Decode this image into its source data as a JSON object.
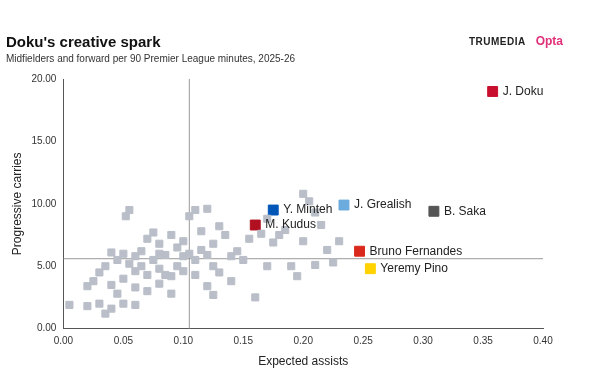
{
  "chart_data": {
    "type": "scatter",
    "title": "Doku's creative spark",
    "subtitle": "Midfielders and forward per 90 Premier League minutes, 2025-26",
    "logos": [
      "TRUMEDIA",
      "Opta"
    ],
    "x_label": "Expected assists",
    "y_label": "Progressive carries",
    "xlim": [
      0,
      0.4
    ],
    "ylim": [
      0,
      20
    ],
    "xticks": [
      {
        "value": 0,
        "label": "0.00"
      },
      {
        "value": 0.05,
        "label": "0.05"
      },
      {
        "value": 0.1,
        "label": "0.10"
      },
      {
        "value": 0.15,
        "label": "0.15"
      },
      {
        "value": 0.2,
        "label": "0.20"
      },
      {
        "value": 0.25,
        "label": "0.25"
      },
      {
        "value": 0.3,
        "label": "0.30"
      },
      {
        "value": 0.35,
        "label": "0.35"
      },
      {
        "value": 0.4,
        "label": "0.40"
      }
    ],
    "yticks": [
      {
        "value": 0,
        "label": "0.00"
      },
      {
        "value": 5,
        "label": "5.00"
      },
      {
        "value": 10,
        "label": "10.00"
      },
      {
        "value": 15,
        "label": "15.00"
      },
      {
        "value": 20,
        "label": "20.00"
      }
    ],
    "grid": false,
    "reference_lines": {
      "x": 0.105,
      "y": 5.6
    },
    "series": [
      {
        "color": "#b9bec8",
        "marker": "square",
        "points": [
          {
            "x": 0.005,
            "y": 1.9
          },
          {
            "x": 0.02,
            "y": 1.8
          },
          {
            "x": 0.02,
            "y": 3.4
          },
          {
            "x": 0.025,
            "y": 3.8
          },
          {
            "x": 0.03,
            "y": 2.0
          },
          {
            "x": 0.03,
            "y": 4.5
          },
          {
            "x": 0.035,
            "y": 1.2
          },
          {
            "x": 0.035,
            "y": 5.0
          },
          {
            "x": 0.04,
            "y": 1.6
          },
          {
            "x": 0.04,
            "y": 3.5
          },
          {
            "x": 0.045,
            "y": 5.5
          },
          {
            "x": 0.045,
            "y": 2.8
          },
          {
            "x": 0.05,
            "y": 2.0
          },
          {
            "x": 0.05,
            "y": 4.0
          },
          {
            "x": 0.05,
            "y": 6.0
          },
          {
            "x": 0.052,
            "y": 9.0
          },
          {
            "x": 0.055,
            "y": 9.5
          },
          {
            "x": 0.055,
            "y": 5.2
          },
          {
            "x": 0.06,
            "y": 3.3
          },
          {
            "x": 0.06,
            "y": 4.6
          },
          {
            "x": 0.06,
            "y": 1.9
          },
          {
            "x": 0.065,
            "y": 6.2
          },
          {
            "x": 0.065,
            "y": 5.0
          },
          {
            "x": 0.07,
            "y": 3.0
          },
          {
            "x": 0.07,
            "y": 4.3
          },
          {
            "x": 0.07,
            "y": 7.2
          },
          {
            "x": 0.075,
            "y": 5.5
          },
          {
            "x": 0.075,
            "y": 7.7
          },
          {
            "x": 0.08,
            "y": 4.8
          },
          {
            "x": 0.08,
            "y": 6.8
          },
          {
            "x": 0.08,
            "y": 3.6
          },
          {
            "x": 0.085,
            "y": 5.9
          },
          {
            "x": 0.085,
            "y": 4.3
          },
          {
            "x": 0.09,
            "y": 7.5
          },
          {
            "x": 0.09,
            "y": 4.2
          },
          {
            "x": 0.09,
            "y": 2.8
          },
          {
            "x": 0.095,
            "y": 6.5
          },
          {
            "x": 0.095,
            "y": 5.0
          },
          {
            "x": 0.1,
            "y": 7.0
          },
          {
            "x": 0.1,
            "y": 4.6
          },
          {
            "x": 0.1,
            "y": 5.8
          },
          {
            "x": 0.105,
            "y": 9.0
          },
          {
            "x": 0.105,
            "y": 6.0
          },
          {
            "x": 0.11,
            "y": 5.5
          },
          {
            "x": 0.11,
            "y": 9.5
          },
          {
            "x": 0.11,
            "y": 4.3
          },
          {
            "x": 0.115,
            "y": 6.3
          },
          {
            "x": 0.115,
            "y": 7.8
          },
          {
            "x": 0.12,
            "y": 9.6
          },
          {
            "x": 0.12,
            "y": 5.9
          },
          {
            "x": 0.12,
            "y": 3.4
          },
          {
            "x": 0.125,
            "y": 6.8
          },
          {
            "x": 0.125,
            "y": 5.0
          },
          {
            "x": 0.13,
            "y": 8.2
          },
          {
            "x": 0.13,
            "y": 4.5
          },
          {
            "x": 0.135,
            "y": 7.5
          },
          {
            "x": 0.14,
            "y": 5.8
          },
          {
            "x": 0.14,
            "y": 3.8
          },
          {
            "x": 0.145,
            "y": 6.2
          },
          {
            "x": 0.15,
            "y": 5.5
          },
          {
            "x": 0.155,
            "y": 7.2
          },
          {
            "x": 0.16,
            "y": 2.5
          },
          {
            "x": 0.165,
            "y": 7.6
          },
          {
            "x": 0.17,
            "y": 5.0
          },
          {
            "x": 0.175,
            "y": 6.9
          },
          {
            "x": 0.18,
            "y": 7.5
          },
          {
            "x": 0.185,
            "y": 7.9
          },
          {
            "x": 0.19,
            "y": 5.0
          },
          {
            "x": 0.195,
            "y": 4.2
          },
          {
            "x": 0.2,
            "y": 10.8
          },
          {
            "x": 0.2,
            "y": 7.0
          },
          {
            "x": 0.205,
            "y": 10.2
          },
          {
            "x": 0.21,
            "y": 9.3
          },
          {
            "x": 0.21,
            "y": 5.1
          },
          {
            "x": 0.215,
            "y": 8.3
          },
          {
            "x": 0.22,
            "y": 6.3
          },
          {
            "x": 0.225,
            "y": 5.3
          },
          {
            "x": 0.23,
            "y": 7.0
          },
          {
            "x": 0.08,
            "y": 6.0
          },
          {
            "x": 0.06,
            "y": 5.8
          },
          {
            "x": 0.04,
            "y": 6.1
          },
          {
            "x": 0.125,
            "y": 2.7
          },
          {
            "x": 0.17,
            "y": 8.8
          }
        ]
      },
      {
        "marker": "square",
        "colors": [
          "#c8102e",
          "#6cabdd",
          "#555555",
          "#0057b8",
          "#b01020",
          "#da291c",
          "#ffd200"
        ],
        "points": [
          {
            "x": 0.358,
            "y": 19.0,
            "label": "J. Doku"
          },
          {
            "x": 0.234,
            "y": 9.9,
            "label": "J. Grealish"
          },
          {
            "x": 0.309,
            "y": 9.4,
            "label": "B. Saka"
          },
          {
            "x": 0.175,
            "y": 9.5,
            "label": "Y. Minteh"
          },
          {
            "x": 0.16,
            "y": 8.3,
            "label": "M. Kudus"
          },
          {
            "x": 0.247,
            "y": 6.2,
            "label": "Bruno Fernandes"
          },
          {
            "x": 0.256,
            "y": 4.8,
            "label": "Yeremy Pino"
          }
        ]
      }
    ]
  }
}
